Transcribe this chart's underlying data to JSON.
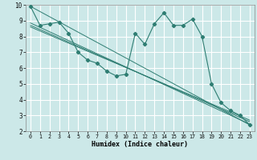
{
  "xlabel": "Humidex (Indice chaleur)",
  "background_color": "#cce8e8",
  "grid_color": "#ffffff",
  "line_color": "#2e7d72",
  "xlim": [
    -0.5,
    23.5
  ],
  "ylim": [
    2,
    10
  ],
  "xticks": [
    0,
    1,
    2,
    3,
    4,
    5,
    6,
    7,
    8,
    9,
    10,
    11,
    12,
    13,
    14,
    15,
    16,
    17,
    18,
    19,
    20,
    21,
    22,
    23
  ],
  "yticks": [
    2,
    3,
    4,
    5,
    6,
    7,
    8,
    9,
    10
  ],
  "main_x": [
    0,
    1,
    2,
    3,
    4,
    5,
    6,
    7,
    8,
    9,
    10,
    11,
    12,
    13,
    14,
    15,
    16,
    17,
    18,
    19,
    20,
    21,
    22,
    23
  ],
  "main_y": [
    9.9,
    8.7,
    8.8,
    8.9,
    8.2,
    7.0,
    6.5,
    6.3,
    5.8,
    5.5,
    5.6,
    8.2,
    7.5,
    8.8,
    9.5,
    8.7,
    8.7,
    9.1,
    8.0,
    5.0,
    3.8,
    3.3,
    3.0,
    2.4
  ],
  "trend1_x": [
    0,
    23
  ],
  "trend1_y": [
    9.9,
    2.4
  ],
  "trend2_x": [
    0,
    23
  ],
  "trend2_y": [
    8.85,
    2.45
  ],
  "trend3_x": [
    0,
    23
  ],
  "trend3_y": [
    8.7,
    2.6
  ],
  "trend4_x": [
    0,
    23
  ],
  "trend4_y": [
    8.6,
    2.7
  ]
}
